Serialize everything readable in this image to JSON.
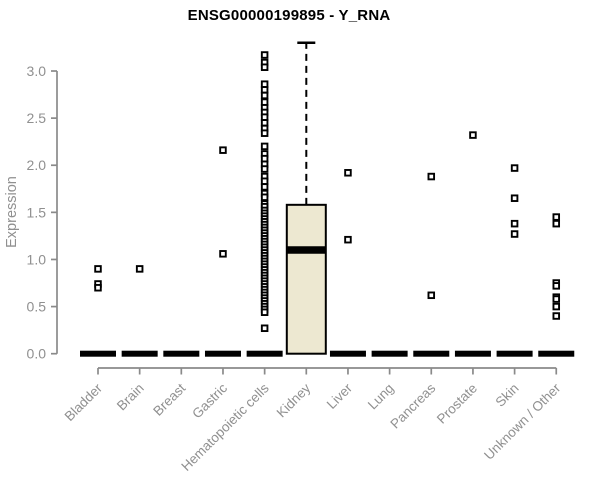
{
  "chart_data": {
    "type": "box",
    "title": "ENSG00000199895 - Y_RNA",
    "ylabel": "Expression",
    "ylim": [
      0,
      3.3
    ],
    "yticks": [
      0.0,
      0.5,
      1.0,
      1.5,
      2.0,
      2.5,
      3.0
    ],
    "grid": false,
    "legend": false,
    "categories": [
      "Bladder",
      "Brain",
      "Breast",
      "Gastric",
      "Hematopoietic cells",
      "Kidney",
      "Liver",
      "Lung",
      "Pancreas",
      "Prostate",
      "Skin",
      "Unknown / Other"
    ],
    "boxes": [
      {
        "category": "Bladder",
        "q1": 0,
        "median": 0,
        "q3": 0,
        "whisker_low": 0,
        "whisker_high": 0,
        "outliers": [
          0.9,
          0.74,
          0.7
        ]
      },
      {
        "category": "Brain",
        "q1": 0,
        "median": 0,
        "q3": 0,
        "whisker_low": 0,
        "whisker_high": 0,
        "outliers": [
          0.9
        ]
      },
      {
        "category": "Breast",
        "q1": 0,
        "median": 0,
        "q3": 0,
        "whisker_low": 0,
        "whisker_high": 0,
        "outliers": []
      },
      {
        "category": "Gastric",
        "q1": 0,
        "median": 0,
        "q3": 0,
        "whisker_low": 0,
        "whisker_high": 0,
        "outliers": [
          2.16,
          1.06
        ]
      },
      {
        "category": "Hematopoietic cells",
        "q1": 0,
        "median": 0,
        "q3": 0,
        "whisker_low": 0,
        "whisker_high": 0,
        "outliers": [
          3.17,
          3.09,
          3.04,
          2.86,
          2.8,
          2.74,
          2.67,
          2.61,
          2.56,
          2.51,
          2.45,
          2.39,
          2.34,
          2.2,
          2.12,
          2.07,
          2.01,
          1.96,
          1.88,
          1.83,
          1.77,
          1.7,
          1.66,
          1.59,
          1.56,
          1.52,
          1.49,
          1.46,
          1.43,
          1.4,
          1.37,
          1.34,
          1.31,
          1.28,
          1.25,
          1.22,
          1.19,
          1.16,
          1.13,
          1.1,
          1.07,
          1.04,
          1.01,
          0.98,
          0.95,
          0.92,
          0.89,
          0.86,
          0.83,
          0.8,
          0.77,
          0.74,
          0.71,
          0.68,
          0.65,
          0.62,
          0.59,
          0.56,
          0.53,
          0.5,
          0.47,
          0.44,
          0.27
        ]
      },
      {
        "category": "Kidney",
        "q1": 0.0,
        "median": 1.1,
        "q3": 1.58,
        "whisker_low": 0.0,
        "whisker_high": 3.3,
        "outliers": []
      },
      {
        "category": "Liver",
        "q1": 0,
        "median": 0,
        "q3": 0,
        "whisker_low": 0,
        "whisker_high": 0,
        "outliers": [
          1.92,
          1.21
        ]
      },
      {
        "category": "Lung",
        "q1": 0,
        "median": 0,
        "q3": 0,
        "whisker_low": 0,
        "whisker_high": 0,
        "outliers": []
      },
      {
        "category": "Pancreas",
        "q1": 0,
        "median": 0,
        "q3": 0,
        "whisker_low": 0,
        "whisker_high": 0,
        "outliers": [
          1.88,
          0.62
        ]
      },
      {
        "category": "Prostate",
        "q1": 0,
        "median": 0,
        "q3": 0,
        "whisker_low": 0,
        "whisker_high": 0,
        "outliers": [
          2.32
        ]
      },
      {
        "category": "Skin",
        "q1": 0,
        "median": 0,
        "q3": 0,
        "whisker_low": 0,
        "whisker_high": 0,
        "outliers": [
          1.97,
          1.65,
          1.38,
          1.27
        ]
      },
      {
        "category": "Unknown / Other",
        "q1": 0,
        "median": 0,
        "q3": 0,
        "whisker_low": 0,
        "whisker_high": 0,
        "outliers": [
          1.45,
          1.38,
          0.75,
          0.72,
          0.6,
          0.58,
          0.5,
          0.4
        ]
      }
    ],
    "colors": {
      "box_fill": "#EDE8D1",
      "box_stroke": "#000000",
      "median": "#000000",
      "point_stroke": "#000000",
      "point_fill": "#ffffff",
      "axis_line": "#8A8A8A",
      "axis_text": "#909090",
      "title": "#000000",
      "background": "#ffffff"
    }
  }
}
